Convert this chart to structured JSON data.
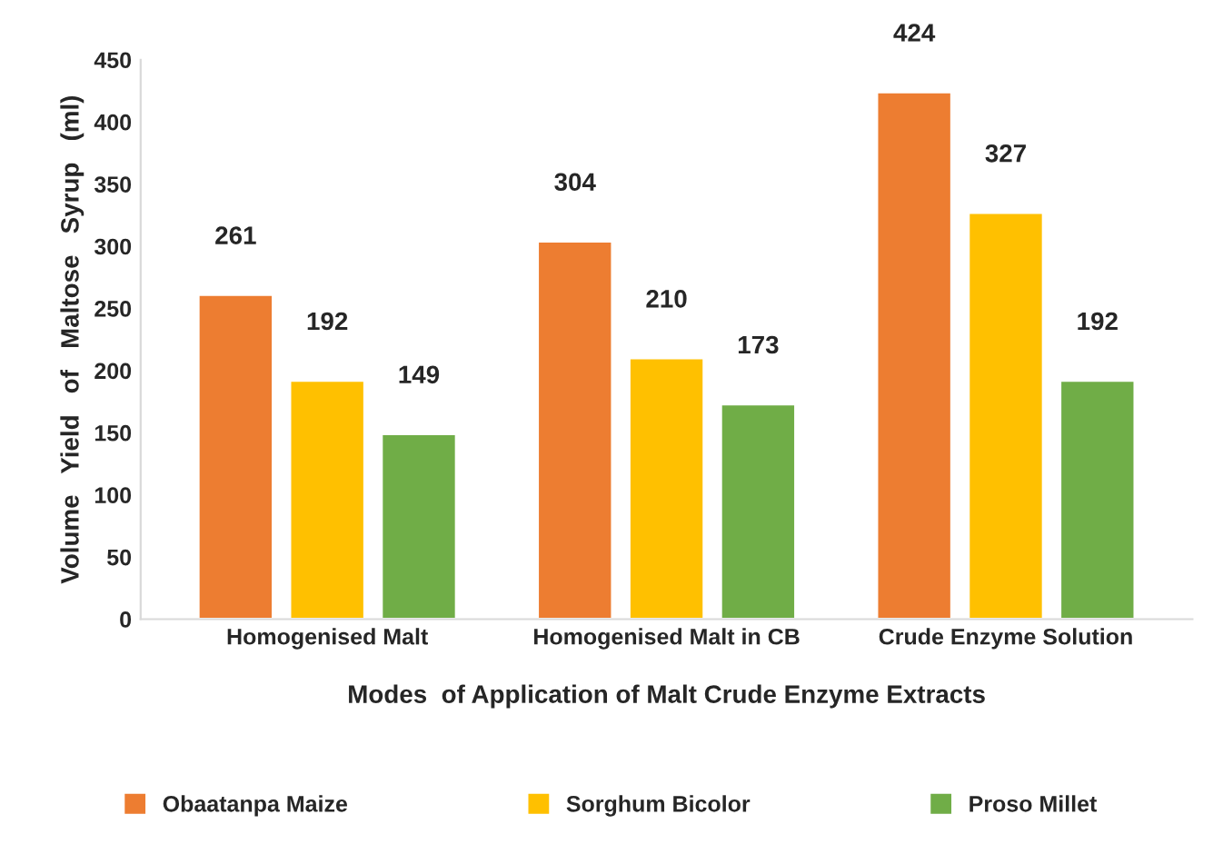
{
  "chart_data": {
    "type": "bar",
    "categories": [
      "Homogenised Malt",
      "Homogenised Malt in CB",
      "Crude Enzyme Solution"
    ],
    "series": [
      {
        "name": "Obaatanpa Maize",
        "color": "#ed7d31",
        "values": [
          261,
          304,
          424
        ]
      },
      {
        "name": "Sorghum Bicolor",
        "color": "#ffc000",
        "values": [
          192,
          210,
          327
        ]
      },
      {
        "name": "Proso Millet",
        "color": "#70ad47",
        "values": [
          149,
          173,
          192
        ]
      }
    ],
    "xlabel": "Modes  of Application of Malt Crude Enzyme Extracts",
    "ylabel": "Volume   Yield   of   Maltose   Syrup   (ml)",
    "ylim": [
      0,
      450
    ],
    "yticks": [
      0,
      50,
      100,
      150,
      200,
      250,
      300,
      350,
      400,
      450
    ],
    "data_labels": true,
    "legend": "bottom",
    "grid": false
  }
}
